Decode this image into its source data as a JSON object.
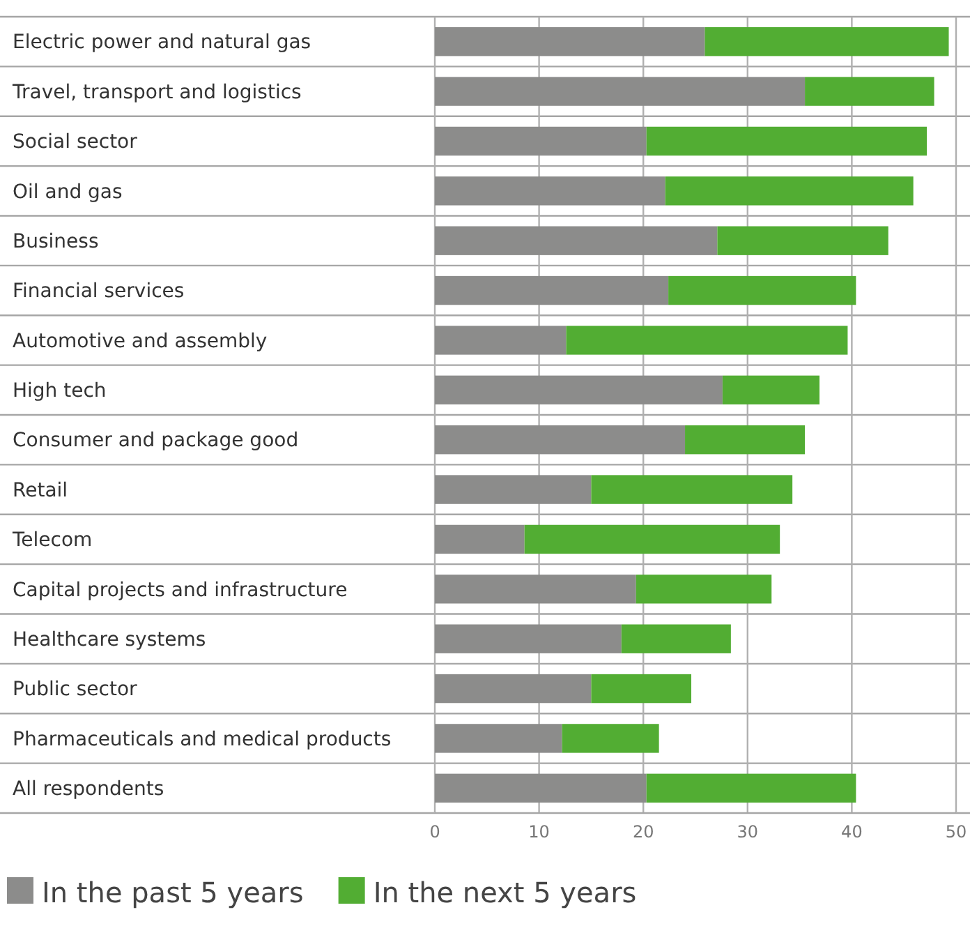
{
  "chart_data": {
    "type": "bar",
    "orientation": "horizontal",
    "stacked": true,
    "categories": [
      "Electric power and natural gas",
      "Travel, transport and logistics",
      "Social sector",
      "Oil and gas",
      "Business",
      "Financial services",
      "Automotive and assembly",
      "High tech",
      "Consumer and package good",
      "Retail",
      "Telecom",
      "Capital projects and infrastructure",
      "Healthcare systems",
      "Public sector",
      "Pharmaceuticals and medical products",
      "All respondents"
    ],
    "series": [
      {
        "name": "In the past 5 years",
        "color": "#8c8c8b",
        "values": [
          25.9,
          35.5,
          20.3,
          22.1,
          27.1,
          22.4,
          12.6,
          27.6,
          24.0,
          15.0,
          8.6,
          19.3,
          17.9,
          15.0,
          12.2,
          20.3
        ]
      },
      {
        "name": "In the next 5 years",
        "color": "#52ad33",
        "values": [
          23.4,
          12.4,
          26.9,
          23.8,
          16.4,
          18.0,
          27.0,
          9.3,
          11.5,
          19.3,
          24.5,
          13.0,
          10.5,
          9.6,
          9.3,
          20.1
        ]
      }
    ],
    "xlim": [
      0,
      50
    ],
    "xticks": [
      0,
      10,
      20,
      30,
      40,
      50
    ],
    "grid": "x",
    "legend": "bottom"
  }
}
